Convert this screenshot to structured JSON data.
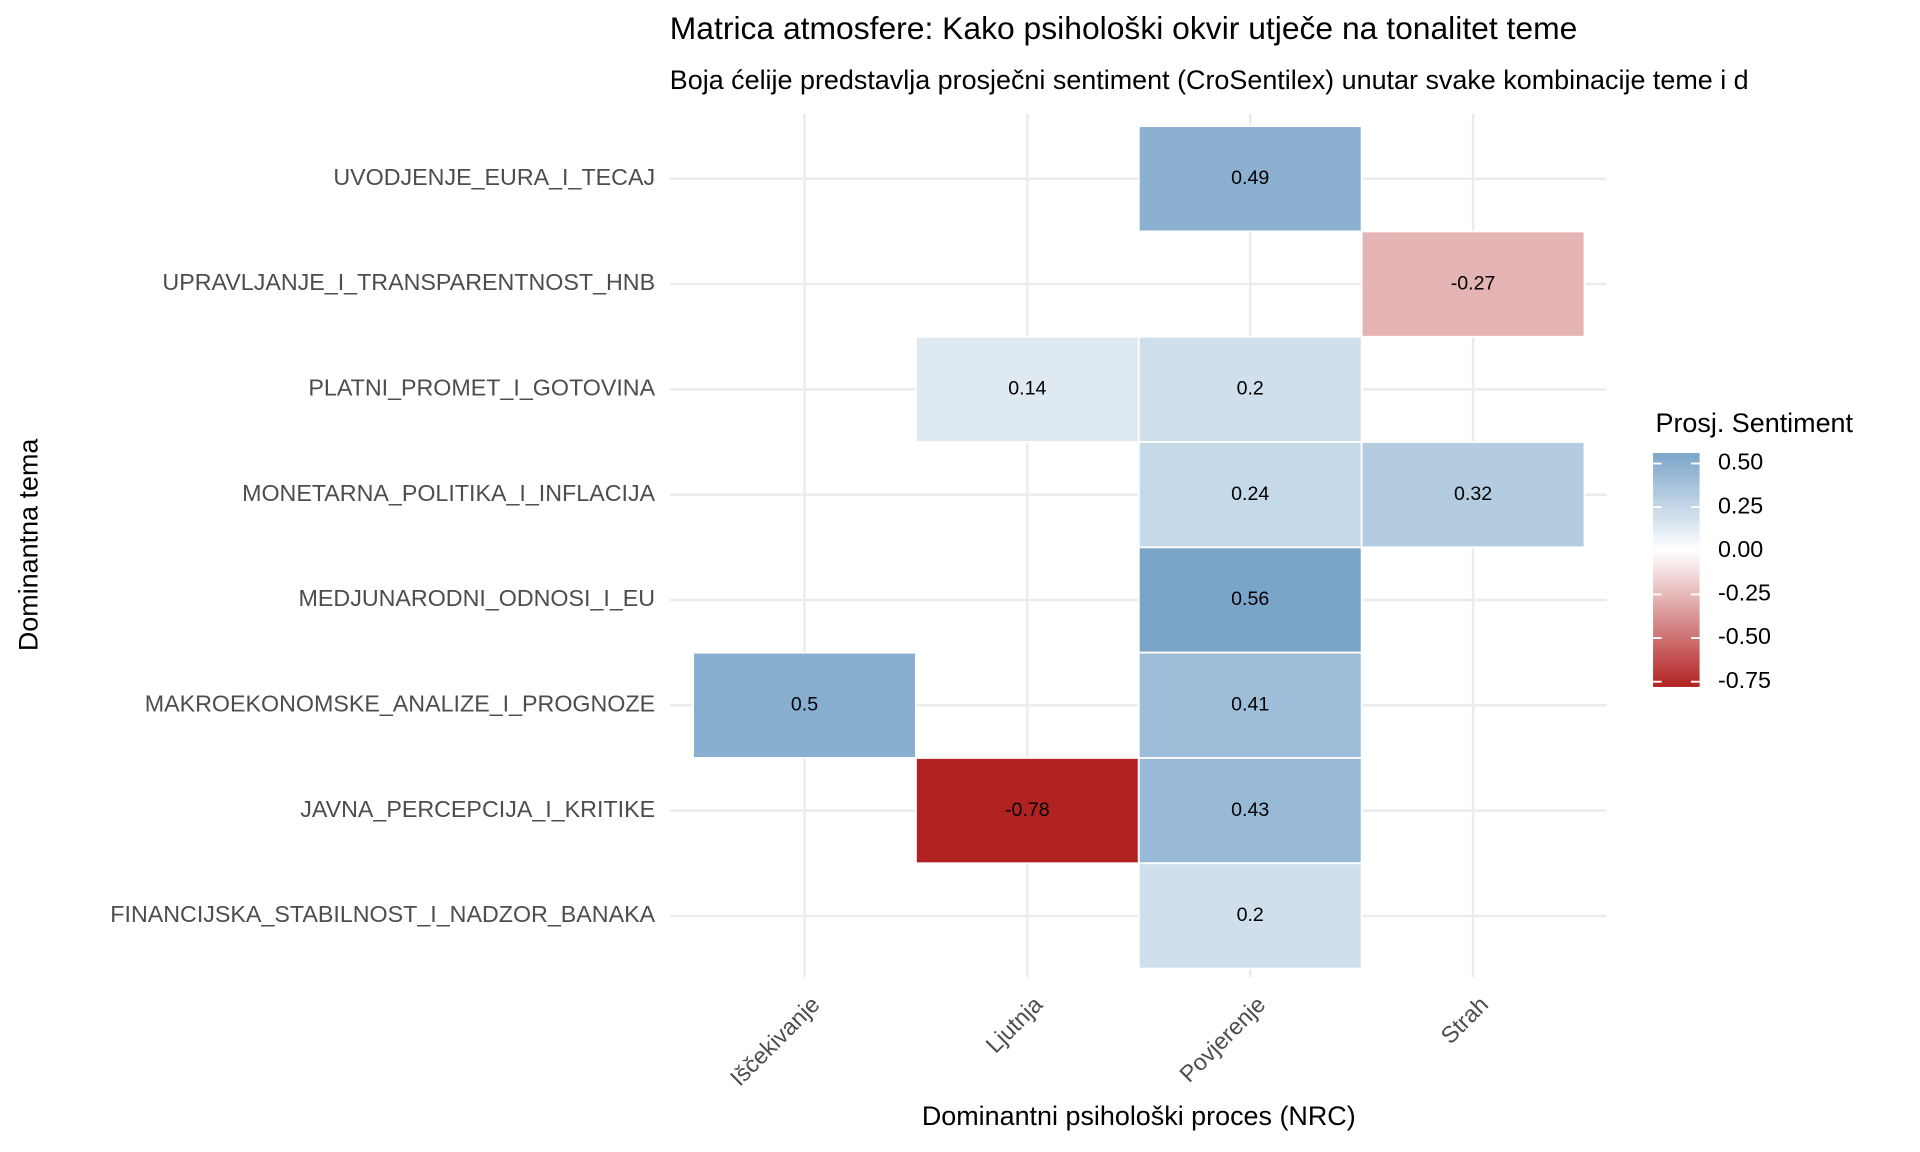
{
  "chart_data": {
    "type": "heatmap",
    "title": "Matrica atmosfere: Kako psihološki okvir utječe na tonalitet teme",
    "subtitle": "Boja ćelije predstavlja prosječni sentiment (CroSentilex) unutar svake kombinacije teme i d",
    "x_label": "Dominantni psihološki proces (NRC)",
    "y_label": "Dominantna tema",
    "categories": [
      "Iščekivanje",
      "Ljutnja",
      "Povjerenje",
      "Strah"
    ],
    "rows": [
      "UVODJENJE_EURA_I_TECAJ",
      "UPRAVLJANJE_I_TRANSPARENTNOST_HNB",
      "PLATNI_PROMET_I_GOTOVINA",
      "MONETARNA_POLITIKA_I_INFLACIJA",
      "MEDJUNARODNI_ODNOSI_I_EU",
      "MAKROEKONOMSKE_ANALIZE_I_PROGNOZE",
      "JAVNA_PERCEPCIJA_I_KRITIKE",
      "FINANCIJSKA_STABILNOST_I_NADZOR_BANAKA"
    ],
    "values": [
      [
        null,
        null,
        0.49,
        null
      ],
      [
        null,
        null,
        null,
        -0.27
      ],
      [
        null,
        0.14,
        0.2,
        null
      ],
      [
        null,
        null,
        0.24,
        0.32
      ],
      [
        null,
        null,
        0.56,
        null
      ],
      [
        0.5,
        null,
        0.41,
        null
      ],
      [
        null,
        -0.78,
        0.43,
        null
      ],
      [
        null,
        null,
        0.2,
        null
      ]
    ],
    "legend_title": "Prosj. Sentiment",
    "clim": [
      -0.78,
      0.56
    ],
    "colors": {
      "low": "#b22222",
      "mid": "#ffffff",
      "high": "#4682b4"
    },
    "legend_ticks": [
      {
        "value": 0.5,
        "label": "0.50"
      },
      {
        "value": 0.25,
        "label": "0.25"
      },
      {
        "value": 0,
        "label": "0.00"
      },
      {
        "value": -0.25,
        "label": "-0.25"
      },
      {
        "value": -0.5,
        "label": "-0.50"
      },
      {
        "value": -0.75,
        "label": "-0.75"
      }
    ],
    "grid": true
  }
}
